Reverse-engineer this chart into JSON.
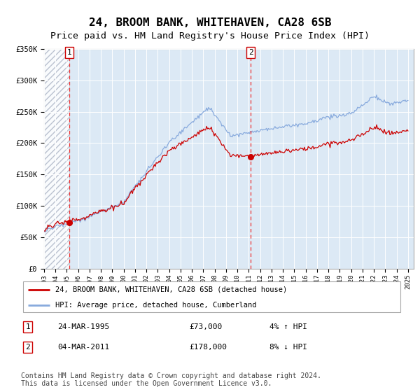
{
  "title": "24, BROOM BANK, WHITEHAVEN, CA28 6SB",
  "subtitle": "Price paid vs. HM Land Registry's House Price Index (HPI)",
  "title_fontsize": 11.5,
  "subtitle_fontsize": 9.5,
  "ylim": [
    0,
    350000
  ],
  "yticks": [
    0,
    50000,
    100000,
    150000,
    200000,
    250000,
    300000,
    350000
  ],
  "ytick_labels": [
    "£0",
    "£50K",
    "£100K",
    "£150K",
    "£200K",
    "£250K",
    "£300K",
    "£350K"
  ],
  "xmin": 1993.0,
  "xmax": 2025.5,
  "xticks": [
    1993,
    1994,
    1995,
    1996,
    1997,
    1998,
    1999,
    2000,
    2001,
    2002,
    2003,
    2004,
    2005,
    2006,
    2007,
    2008,
    2009,
    2010,
    2011,
    2012,
    2013,
    2014,
    2015,
    2016,
    2017,
    2018,
    2019,
    2020,
    2021,
    2022,
    2023,
    2024,
    2025
  ],
  "plot_bg_color": "#dce9f5",
  "hatch_color": "#b0b8c8",
  "grid_color": "#ffffff",
  "red_line_color": "#cc0000",
  "blue_line_color": "#88aadd",
  "vline_color": "#ee3333",
  "marker_color": "#cc0000",
  "transaction1_x": 1995.22,
  "transaction1_y": 73000,
  "transaction1_label": "1",
  "transaction1_date": "24-MAR-1995",
  "transaction1_price": "£73,000",
  "transaction1_hpi": "4% ↑ HPI",
  "transaction2_x": 2011.17,
  "transaction2_y": 178000,
  "transaction2_label": "2",
  "transaction2_date": "04-MAR-2011",
  "transaction2_price": "£178,000",
  "transaction2_hpi": "8% ↓ HPI",
  "legend_label1": "24, BROOM BANK, WHITEHAVEN, CA28 6SB (detached house)",
  "legend_label2": "HPI: Average price, detached house, Cumberland",
  "footer": "Contains HM Land Registry data © Crown copyright and database right 2024.\nThis data is licensed under the Open Government Licence v3.0.",
  "footer_fontsize": 7.0
}
